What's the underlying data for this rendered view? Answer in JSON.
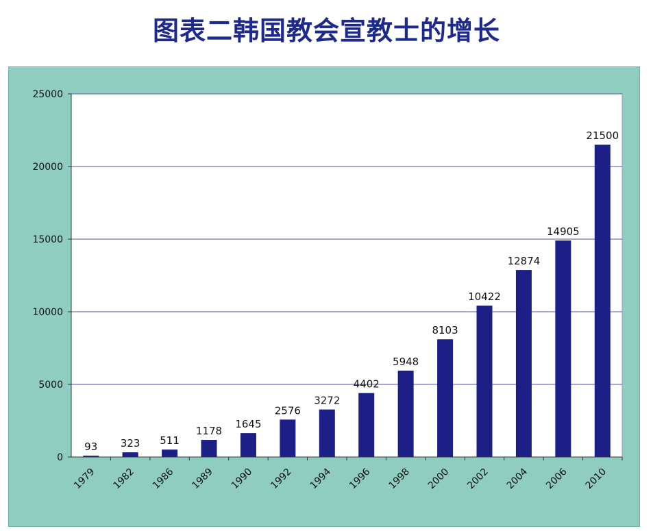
{
  "chart_data": {
    "type": "bar",
    "title": "图表二韩国教会宣教士的增长",
    "xlabel": "",
    "ylabel": "",
    "categories": [
      "1979",
      "1982",
      "1986",
      "1989",
      "1990",
      "1992",
      "1994",
      "1996",
      "1998",
      "2000",
      "2002",
      "2004",
      "2006",
      "2010"
    ],
    "values": [
      93,
      323,
      511,
      1178,
      1645,
      2576,
      3272,
      4402,
      5948,
      8103,
      10422,
      12874,
      14905,
      21500
    ],
    "ylim": [
      0,
      25000
    ],
    "yticks": [
      "0",
      "5000",
      "10000",
      "15000",
      "20000",
      "25000"
    ],
    "data_labels": [
      "93",
      "323",
      "511",
      "1178",
      "1645",
      "2576",
      "3272",
      "4402",
      "5948",
      "8103",
      "10422",
      "12874",
      "14905",
      "21500"
    ],
    "grid": true,
    "legend": "none",
    "colors": {
      "bar": "#1c1f86",
      "plot_background": "#ffffff",
      "frame_background": "#8ecdbf",
      "gridline": "#6f74b8",
      "title": "#1d2a8c"
    }
  }
}
